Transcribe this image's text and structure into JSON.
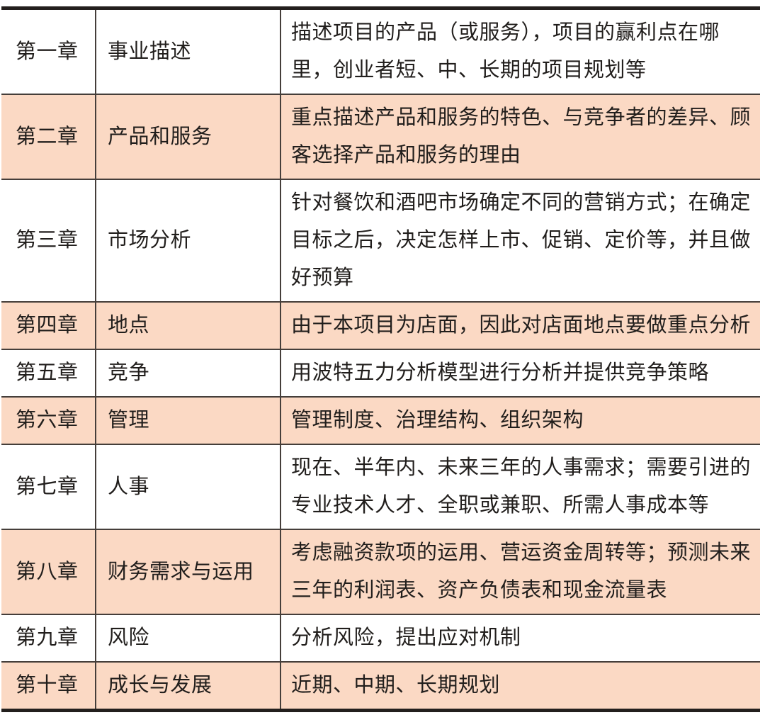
{
  "document": {
    "type": "chapter-outline-table",
    "colors": {
      "row_highlight": "#fbd9c4",
      "rule_thick": "#231f1d",
      "rule_thin": "#453e3a",
      "text": "#211e1c",
      "background": "#ffffff"
    }
  },
  "table": {
    "rows": [
      {
        "chapter": "第一章",
        "title": "事业描述",
        "description": "描述项目的产品（或服务），项目的赢利点在哪里，创业者短、中、长期的项目规划等",
        "shaded": false
      },
      {
        "chapter": "第二章",
        "title": "产品和服务",
        "description": "重点描述产品和服务的特色、与竞争者的差异、顾客选择产品和服务的理由",
        "shaded": true
      },
      {
        "chapter": "第三章",
        "title": "市场分析",
        "description": "针对餐饮和酒吧市场确定不同的营销方式；在确定目标之后，决定怎样上市、促销、定价等，并且做好预算",
        "shaded": false
      },
      {
        "chapter": "第四章",
        "title": "地点",
        "description": "由于本项目为店面，因此对店面地点要做重点分析",
        "shaded": true
      },
      {
        "chapter": "第五章",
        "title": "竞争",
        "description": "用波特五力分析模型进行分析并提供竞争策略",
        "shaded": false
      },
      {
        "chapter": "第六章",
        "title": "管理",
        "description": "管理制度、治理结构、组织架构",
        "shaded": true
      },
      {
        "chapter": "第七章",
        "title": "人事",
        "description": "现在、半年内、未来三年的人事需求；需要引进的专业技术人才、全职或兼职、所需人事成本等",
        "shaded": false
      },
      {
        "chapter": "第八章",
        "title": "财务需求与运用",
        "description": "考虑融资款项的运用、营运资金周转等；预测未来三年的利润表、资产负债表和现金流量表",
        "shaded": true
      },
      {
        "chapter": "第九章",
        "title": "风险",
        "description": "分析风险，提出应对机制",
        "shaded": false
      },
      {
        "chapter": "第十章",
        "title": "成长与发展",
        "description": "近期、中期、长期规划",
        "shaded": true
      }
    ]
  }
}
